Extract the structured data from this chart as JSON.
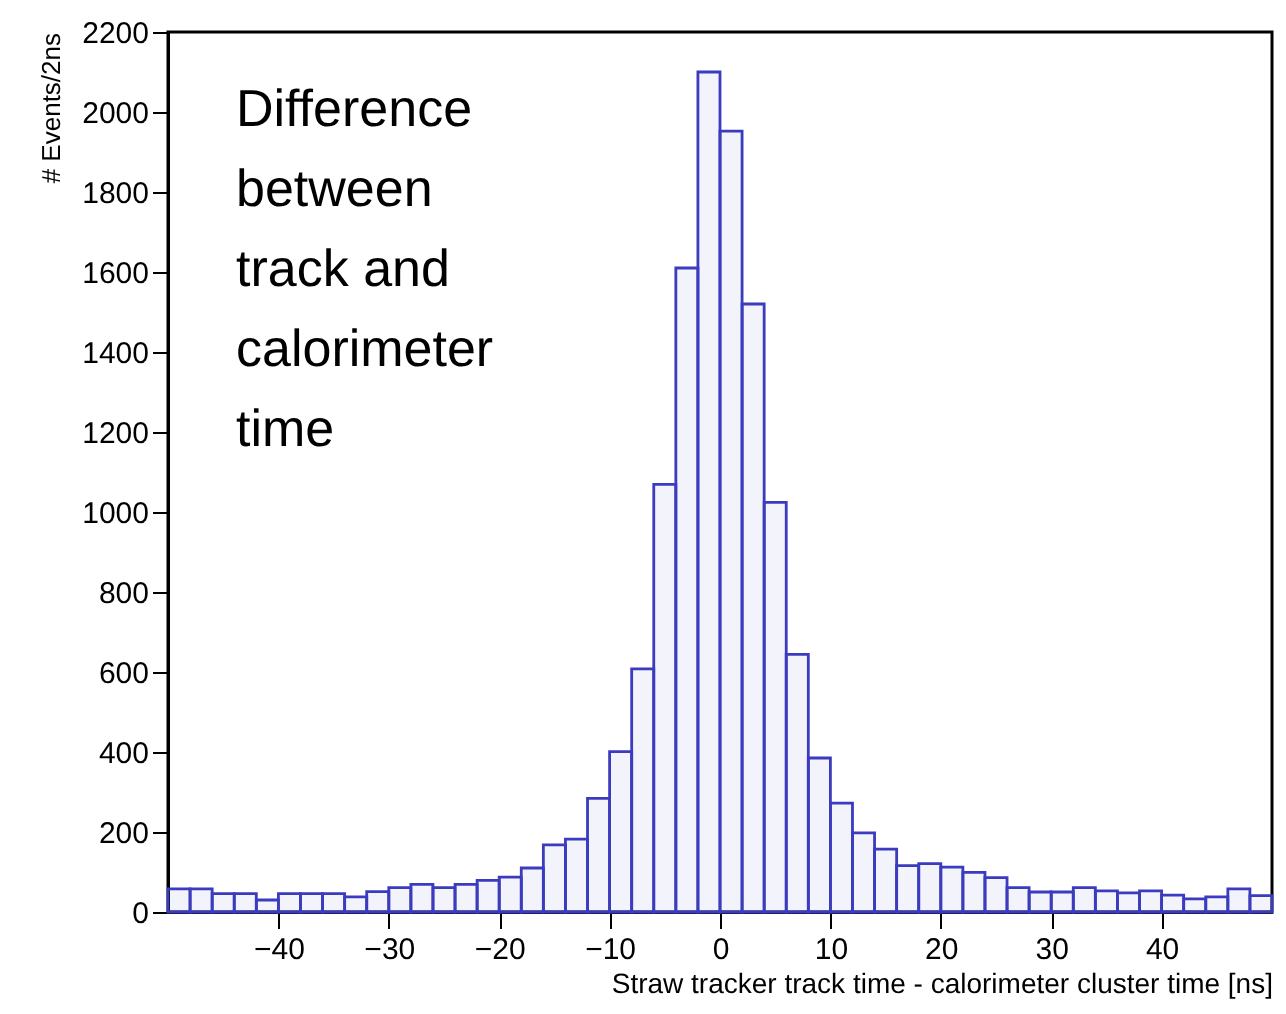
{
  "chart_data": {
    "type": "histogram",
    "xlabel": "Straw tracker track time - calorimeter cluster time  [ns]",
    "ylabel": "# Events/2ns",
    "annotations": [
      "Difference\nbetween\ntrack and\ncalorimeter\ntime"
    ],
    "bins": [
      -50,
      -48,
      -46,
      -44,
      -42,
      -40,
      -38,
      -36,
      -34,
      -32,
      -30,
      -28,
      -26,
      -24,
      -22,
      -20,
      -18,
      -16,
      -14,
      -12,
      -10,
      -8,
      -6,
      -4,
      -2,
      0,
      2,
      4,
      6,
      8,
      10,
      12,
      14,
      16,
      18,
      20,
      22,
      24,
      26,
      28,
      30,
      32,
      34,
      36,
      38,
      40,
      42,
      44,
      46,
      48,
      50
    ],
    "values": [
      58,
      58,
      46,
      46,
      30,
      46,
      46,
      46,
      38,
      51,
      61,
      69,
      61,
      69,
      79,
      87,
      110,
      168,
      182,
      284,
      401,
      608,
      1069,
      1610,
      2100,
      1952,
      1520,
      1024,
      644,
      385,
      272,
      198,
      157,
      116,
      121,
      112,
      99,
      86,
      61,
      50,
      50,
      61,
      53,
      48,
      53,
      42,
      33,
      38,
      58,
      41
    ],
    "color": "#3b3bbf",
    "xlim": [
      -50,
      50
    ],
    "xticks": [
      -40,
      -30,
      -20,
      -10,
      0,
      10,
      20,
      30,
      40
    ],
    "ylim": [
      0,
      2200
    ],
    "yticks": [
      0,
      200,
      400,
      600,
      800,
      1000,
      1200,
      1400,
      1600,
      1800,
      2000,
      2200
    ],
    "grid": false
  }
}
